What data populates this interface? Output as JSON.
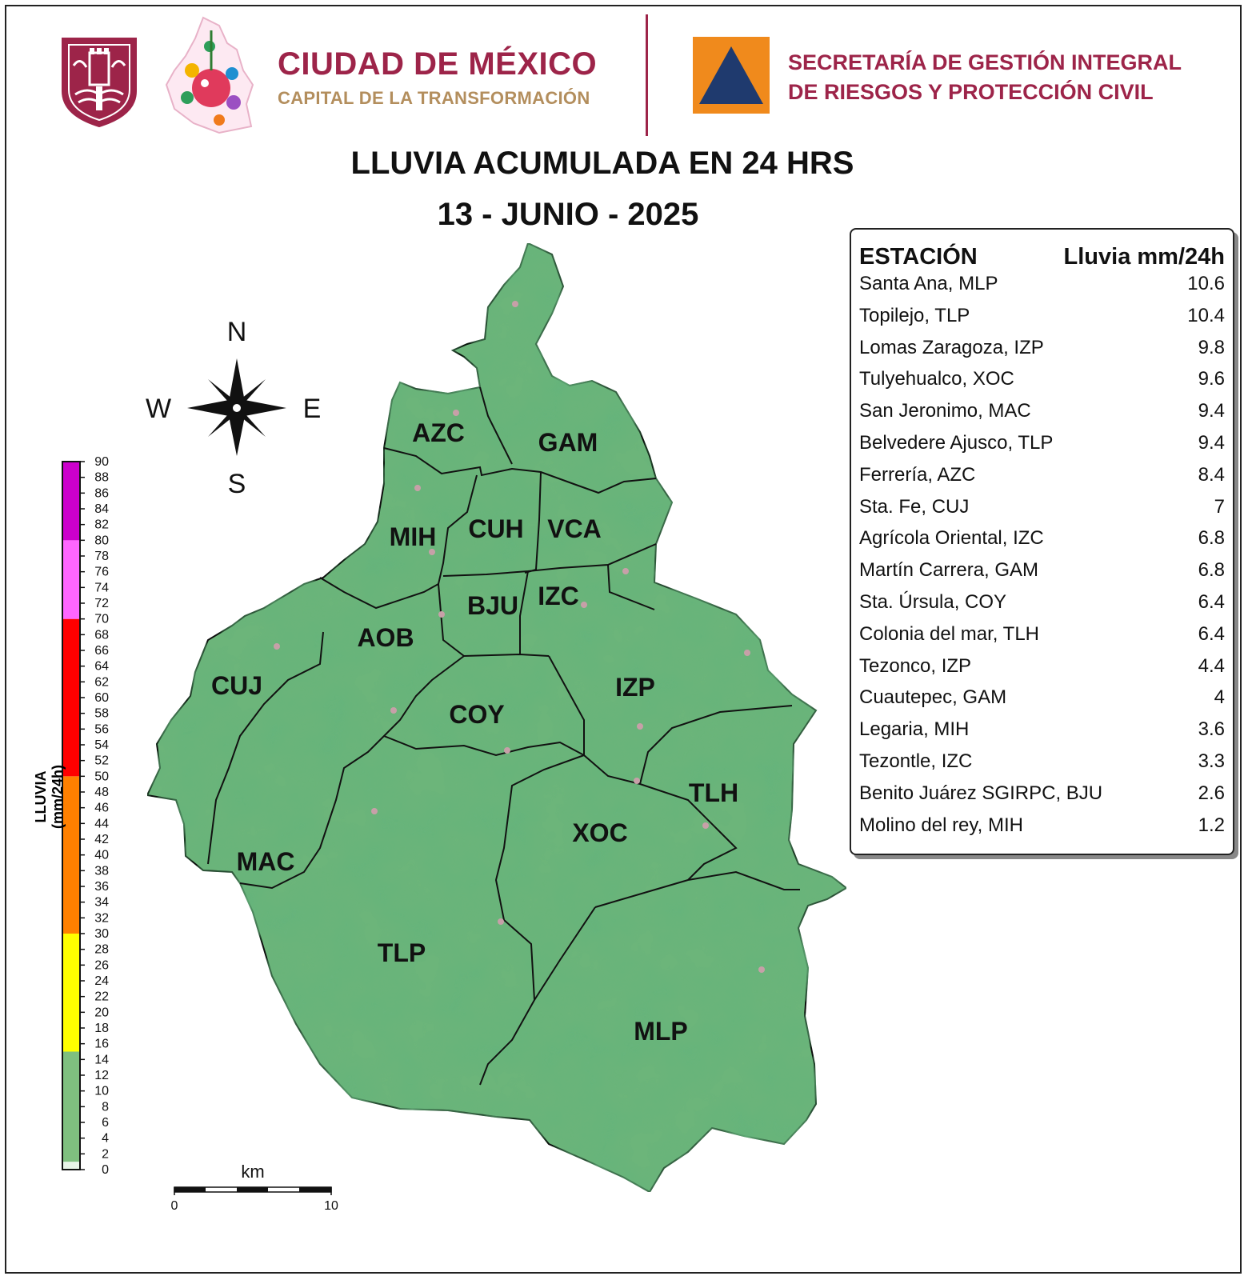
{
  "header": {
    "cdmx_title": "CIUDAD DE MÉXICO",
    "cdmx_subtitle": "CAPITAL DE LA TRANSFORMACIÓN",
    "agency_line1": "SECRETARÍA DE GESTIÓN INTEGRAL",
    "agency_line2": "DE RIESGOS Y PROTECCIÓN CIVIL",
    "brand_color": "#9d2449",
    "gold_color": "#b38e5d",
    "pc_orange": "#f08a1c",
    "pc_blue": "#1f3a6e"
  },
  "map": {
    "title": "LLUVIA ACUMULADA EN 24 HRS",
    "date": "13 - JUNIO - 2025",
    "compass": {
      "n": "N",
      "s": "S",
      "e": "E",
      "w": "W"
    },
    "colorbar": {
      "label": "LLUVIA (mm/24h)",
      "ticks": [
        "0",
        "2",
        "4",
        "6",
        "8",
        "10",
        "12",
        "14",
        "16",
        "18",
        "20",
        "22",
        "24",
        "26",
        "28",
        "30",
        "32",
        "34",
        "36",
        "38",
        "40",
        "42",
        "44",
        "46",
        "48",
        "50",
        "52",
        "54",
        "56",
        "58",
        "60",
        "62",
        "64",
        "66",
        "68",
        "70",
        "72",
        "74",
        "76",
        "78",
        "80",
        "82",
        "84",
        "86",
        "88",
        "90"
      ],
      "bands": [
        {
          "from": 0,
          "to": 1,
          "color": "#e8f4e8"
        },
        {
          "from": 1,
          "to": 15,
          "color": "#7fbf7f"
        },
        {
          "from": 15,
          "to": 30,
          "color": "#ffff00"
        },
        {
          "from": 30,
          "to": 50,
          "color": "#ff8000"
        },
        {
          "from": 50,
          "to": 70,
          "color": "#ff0000"
        },
        {
          "from": 70,
          "to": 80,
          "color": "#ff66ff"
        },
        {
          "from": 80,
          "to": 90,
          "color": "#cc00cc"
        }
      ]
    },
    "scalebar": {
      "unit": "km",
      "start": "0",
      "end": "10"
    },
    "boroughs": [
      "AZC",
      "GAM",
      "MIH",
      "CUH",
      "VCA",
      "BJU",
      "IZC",
      "AOB",
      "CUJ",
      "COY",
      "IZP",
      "TLH",
      "MAC",
      "XOC",
      "TLP",
      "MLP"
    ],
    "terrain_color": "#5aa86a"
  },
  "stations": {
    "header_station": "ESTACIÓN",
    "header_value": "Lluvia mm/24h",
    "rows": [
      {
        "name": "Santa Ana, MLP",
        "value": "10.6"
      },
      {
        "name": "Topilejo, TLP",
        "value": "10.4"
      },
      {
        "name": "Lomas Zaragoza, IZP",
        "value": "9.8"
      },
      {
        "name": "Tulyehualco, XOC",
        "value": "9.6"
      },
      {
        "name": "San Jeronimo, MAC",
        "value": "9.4"
      },
      {
        "name": "Belvedere Ajusco, TLP",
        "value": "9.4"
      },
      {
        "name": "Ferrería, AZC",
        "value": "8.4"
      },
      {
        "name": "Sta. Fe, CUJ",
        "value": "7"
      },
      {
        "name": "Agrícola Oriental, IZC",
        "value": "6.8"
      },
      {
        "name": "Martín Carrera, GAM",
        "value": "6.8"
      },
      {
        "name": "Sta. Úrsula, COY",
        "value": "6.4"
      },
      {
        "name": "Colonia del mar, TLH",
        "value": "6.4"
      },
      {
        "name": "Tezonco, IZP",
        "value": "4.4"
      },
      {
        "name": "Cuautepec, GAM",
        "value": "4"
      },
      {
        "name": "Legaria, MIH",
        "value": "3.6"
      },
      {
        "name": "Tezontle, IZC",
        "value": "3.3"
      },
      {
        "name": "Benito Juárez SGIRPC, BJU",
        "value": "2.6"
      },
      {
        "name": "Molino del rey, MIH",
        "value": "1.2"
      }
    ]
  }
}
